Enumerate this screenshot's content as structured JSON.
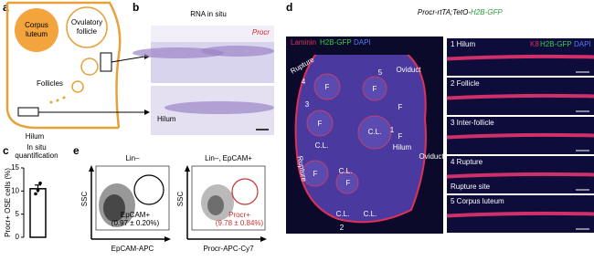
{
  "panels": {
    "a": {
      "label": "a",
      "corpus_luteum": [
        "Corpus",
        "luteum"
      ],
      "ovulatory_follicle": [
        "Ovulatory",
        "follicle"
      ],
      "follicles": "Follicles",
      "hilum": "Hilum"
    },
    "b": {
      "label": "b",
      "title": "RNA in situ",
      "marker": "Procr",
      "hilum": "Hilum"
    },
    "c": {
      "label": "c",
      "title": [
        "In situ",
        "quantification"
      ],
      "ylabel": "Procr+ OSE cells (%)",
      "ylim": [
        0,
        15
      ],
      "yticks": [
        0,
        5,
        10,
        15
      ],
      "value": 10.5,
      "error": 0.8,
      "points": [
        9.4,
        10.2,
        11.7
      ]
    },
    "d": {
      "label": "d",
      "title": [
        "Procr-rtTA;TetO-",
        "H2B-GFP"
      ],
      "legend": [
        "Laminin",
        "H2B-GFP",
        "DAPI"
      ],
      "overview_labels": [
        "Rupture",
        "4",
        "5",
        "3",
        "F",
        "F",
        "F",
        "C.L.",
        "C.L.",
        "F",
        "F",
        "Oviduct",
        "1",
        "Hilum",
        "Oviduct",
        "Rupture",
        "C.L.",
        "C.L.",
        "C.L.",
        "F",
        "F",
        "2"
      ],
      "inset_legend": [
        "K8",
        "H2B-GFP",
        "DAPI"
      ],
      "insets": [
        "1 Hilum",
        "2 Follicle",
        "3 Inter-follicle",
        "4 Rupture",
        "5 Corpus luteum"
      ],
      "rupture_site": "Rupture site"
    },
    "e": {
      "label": "e",
      "gate1_title": "Lin–",
      "gate2_title": "Lin–, EpCAM+",
      "ylabel": [
        "SSC",
        "SSC"
      ],
      "gate1": [
        "EpCAM+",
        "(0.97 ± 0.20%)"
      ],
      "gate2": [
        "Procr+",
        "(9.78 ± 0.84%)"
      ],
      "xlabel": [
        "EpCAM-APC",
        "Procr-APC-Cy7"
      ]
    }
  }
}
